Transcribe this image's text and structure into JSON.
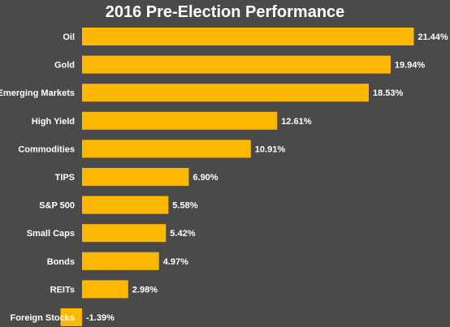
{
  "chart_data": {
    "type": "bar",
    "orientation": "horizontal",
    "title": "2016 Pre-Election Performance",
    "categories": [
      "Oil",
      "Gold",
      "Emerging Markets",
      "High Yield",
      "Commodities",
      "TIPS",
      "S&P 500",
      "Small Caps",
      "Bonds",
      "REITs",
      "Foreign Stocks"
    ],
    "values": [
      21.44,
      19.94,
      18.53,
      12.61,
      10.91,
      6.9,
      5.58,
      5.42,
      4.97,
      2.98,
      -1.39
    ],
    "value_labels": [
      "21.44%",
      "19.94%",
      "18.53%",
      "12.61%",
      "10.91%",
      "6.90%",
      "5.58%",
      "5.42%",
      "4.97%",
      "2.98%",
      "-1.39%"
    ],
    "xlabel": "",
    "ylabel": "",
    "grid": false,
    "legend": "none",
    "bar_color": "#ffb800",
    "background_color": "#4a4a4a",
    "text_color": "#ffffff"
  }
}
